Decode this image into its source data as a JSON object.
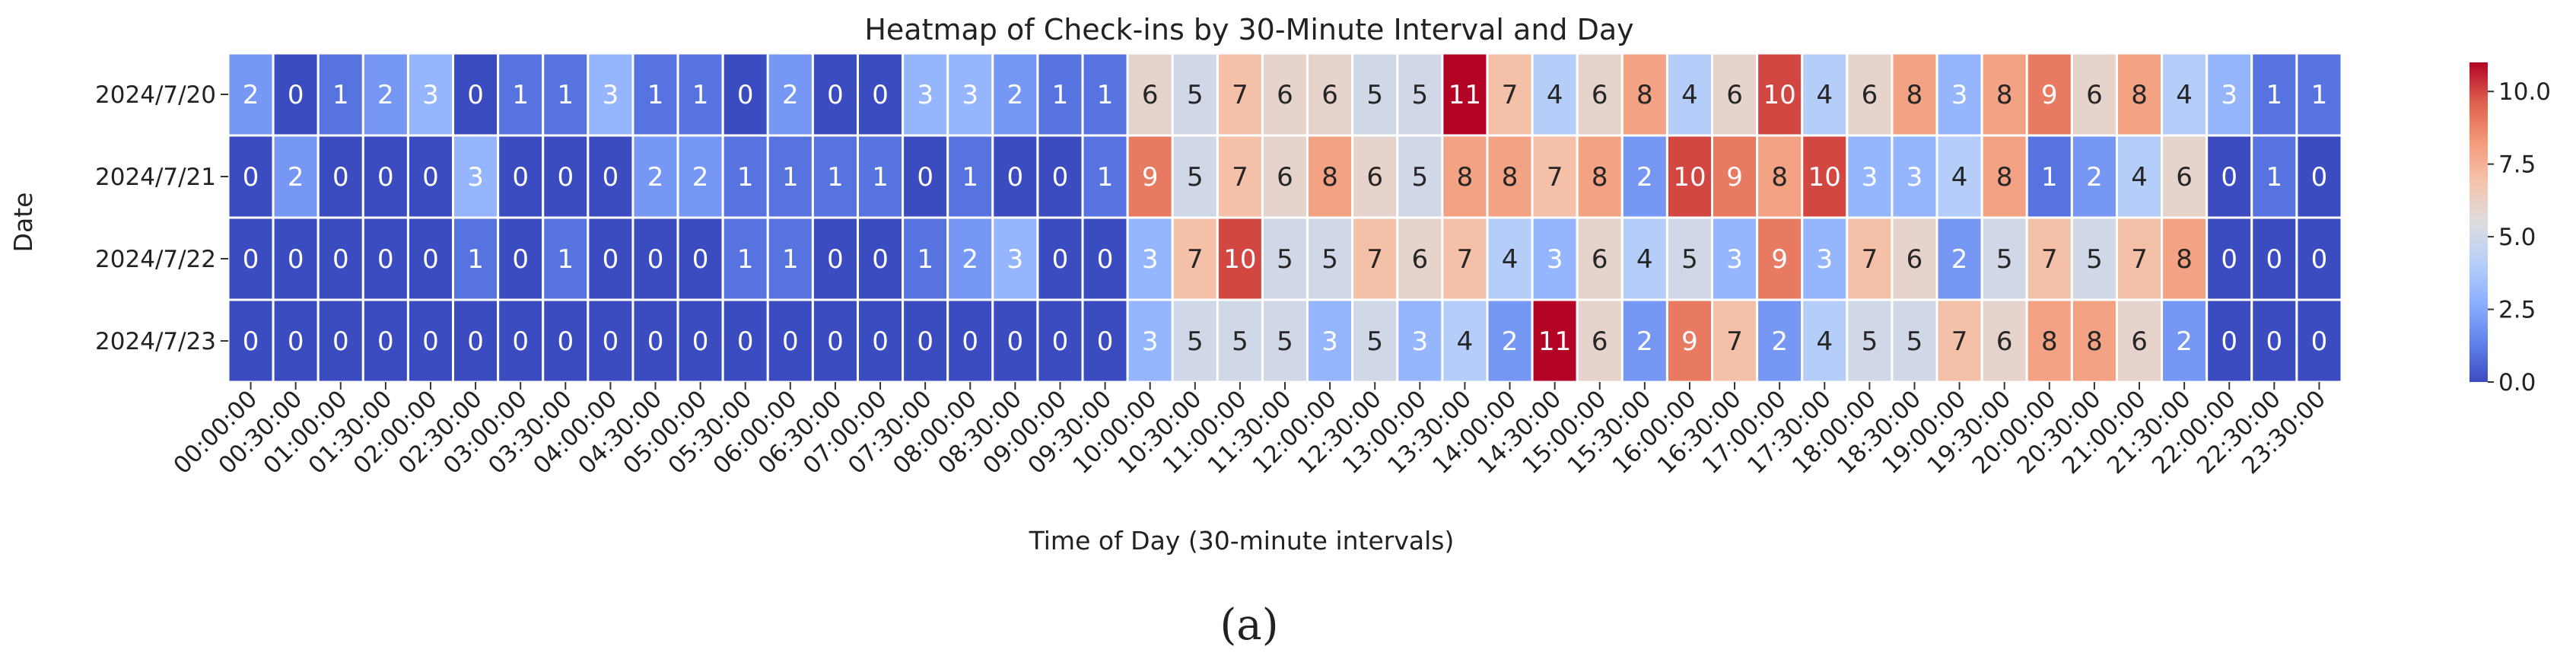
{
  "chart_data": {
    "type": "heatmap",
    "title": "Heatmap of Check-ins by 30-Minute Interval and Day",
    "xlabel": "Time of Day (30-minute intervals)",
    "ylabel": "Date",
    "rows": [
      "2024/7/20",
      "2024/7/21",
      "2024/7/22",
      "2024/7/23"
    ],
    "columns": [
      "00:00:00",
      "00:30:00",
      "01:00:00",
      "01:30:00",
      "02:00:00",
      "02:30:00",
      "03:00:00",
      "03:30:00",
      "04:00:00",
      "04:30:00",
      "05:00:00",
      "05:30:00",
      "06:00:00",
      "06:30:00",
      "07:00:00",
      "07:30:00",
      "08:00:00",
      "08:30:00",
      "09:00:00",
      "09:30:00",
      "10:00:00",
      "10:30:00",
      "11:00:00",
      "11:30:00",
      "12:00:00",
      "12:30:00",
      "13:00:00",
      "13:30:00",
      "14:00:00",
      "14:30:00",
      "15:00:00",
      "15:30:00",
      "16:00:00",
      "16:30:00",
      "17:00:00",
      "17:30:00",
      "18:00:00",
      "18:30:00",
      "19:00:00",
      "19:30:00",
      "20:00:00",
      "20:30:00",
      "21:00:00",
      "21:30:00",
      "22:00:00",
      "22:30:00",
      "23:30:00"
    ],
    "values": [
      [
        2,
        0,
        1,
        2,
        3,
        0,
        1,
        1,
        3,
        1,
        1,
        0,
        2,
        0,
        0,
        3,
        3,
        2,
        1,
        1,
        6,
        5,
        7,
        6,
        6,
        5,
        5,
        11,
        7,
        4,
        6,
        8,
        4,
        6,
        10,
        4,
        6,
        8,
        3,
        8,
        9,
        6,
        8,
        4,
        3,
        1,
        1
      ],
      [
        0,
        2,
        0,
        0,
        0,
        3,
        0,
        0,
        0,
        2,
        2,
        1,
        1,
        1,
        1,
        0,
        1,
        0,
        0,
        1,
        9,
        5,
        7,
        6,
        8,
        6,
        5,
        8,
        8,
        7,
        8,
        2,
        10,
        9,
        8,
        10,
        3,
        3,
        4,
        8,
        1,
        2,
        4,
        6,
        0,
        1,
        0
      ],
      [
        0,
        0,
        0,
        0,
        0,
        1,
        0,
        1,
        0,
        0,
        0,
        1,
        1,
        0,
        0,
        1,
        2,
        3,
        0,
        0,
        3,
        7,
        10,
        5,
        5,
        7,
        6,
        7,
        4,
        3,
        6,
        4,
        5,
        3,
        9,
        3,
        7,
        6,
        2,
        5,
        7,
        5,
        7,
        8,
        0,
        0,
        0
      ],
      [
        0,
        0,
        0,
        0,
        0,
        0,
        0,
        0,
        0,
        0,
        0,
        0,
        0,
        0,
        0,
        0,
        0,
        0,
        0,
        0,
        3,
        5,
        5,
        5,
        3,
        5,
        3,
        4,
        2,
        11,
        6,
        2,
        9,
        7,
        2,
        4,
        5,
        5,
        7,
        6,
        8,
        8,
        6,
        2,
        0,
        0,
        0
      ]
    ],
    "vmin": 0,
    "vmax": 11,
    "colormap": "coolwarm",
    "colorbar_ticks": [
      "0.0",
      "2.5",
      "5.0",
      "7.5",
      "10.0"
    ],
    "colorbar_tick_values": [
      0,
      2.5,
      5,
      7.5,
      10
    ]
  },
  "caption": "(a)",
  "colors": {
    "cold": "#3b4cc0",
    "neutral": "#dddddd",
    "hot": "#b40426",
    "cell_border": "#ffffff"
  }
}
